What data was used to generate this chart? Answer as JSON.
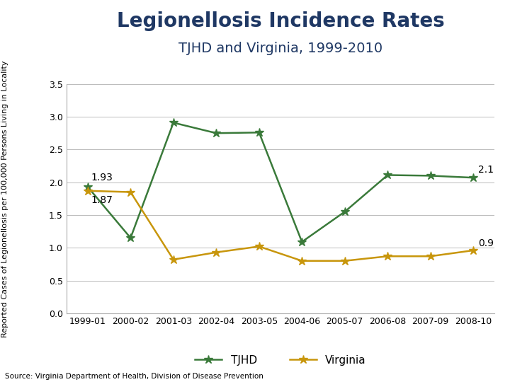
{
  "title": "Legionellosis Incidence Rates",
  "subtitle": "TJHD and Virginia, 1999-2010",
  "ylabel": "Reported Cases of Legionellosis per 100,000 Persons Living in Locality",
  "source": "Source: Virginia Department of Health, Division of Disease Prevention",
  "x_labels": [
    "1999-01",
    "2000-02",
    "2001-03",
    "2002-04",
    "2003-05",
    "2004-06",
    "2005-07",
    "2006-08",
    "2007-09",
    "2008-10"
  ],
  "tjhd_values": [
    1.93,
    1.15,
    2.91,
    2.75,
    2.76,
    1.09,
    1.55,
    2.11,
    2.1,
    2.07
  ],
  "virginia_values": [
    1.87,
    1.85,
    0.82,
    0.93,
    1.02,
    0.8,
    0.8,
    0.87,
    0.87,
    0.96
  ],
  "tjhd_color": "#3a7a3a",
  "virginia_color": "#c8960c",
  "ylim": [
    0.0,
    3.5
  ],
  "yticks": [
    0.0,
    0.5,
    1.0,
    1.5,
    2.0,
    2.5,
    3.0,
    3.5
  ],
  "title_color": "#1f3864",
  "title_fontsize": 20,
  "subtitle_fontsize": 14,
  "axis_label_fontsize": 8,
  "tick_fontsize": 9,
  "legend_fontsize": 11,
  "annotation_fontsize": 10,
  "background_color": "#ffffff",
  "grid_color": "#bbbbbb"
}
